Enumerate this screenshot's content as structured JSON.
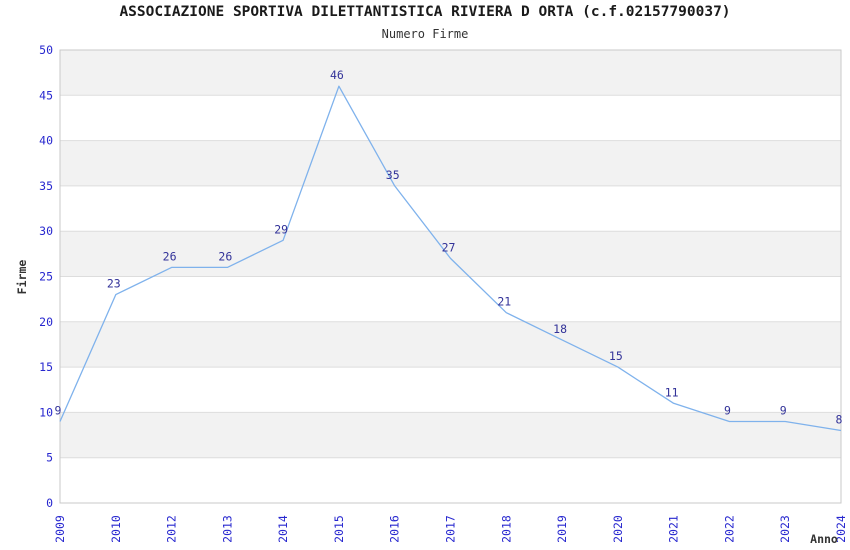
{
  "chart_data": {
    "type": "line",
    "title": "ASSOCIAZIONE SPORTIVA DILETTANTISTICA RIVIERA D ORTA (c.f.02157790037)",
    "subtitle": "Numero Firme",
    "xlabel": "Anno",
    "ylabel": "Firme",
    "categories": [
      "2009",
      "2010",
      "2012",
      "2013",
      "2014",
      "2015",
      "2016",
      "2017",
      "2018",
      "2019",
      "2020",
      "2021",
      "2022",
      "2023",
      "2024"
    ],
    "values": [
      9,
      23,
      26,
      26,
      29,
      46,
      35,
      27,
      21,
      18,
      15,
      11,
      9,
      9,
      8
    ],
    "ylim": [
      0,
      50
    ],
    "ytick_step": 5,
    "yticks": [
      0,
      5,
      10,
      15,
      20,
      25,
      30,
      35,
      40,
      45,
      50
    ],
    "grid": true,
    "banded_background": true,
    "legend_position": "none",
    "data_labels_shown": true,
    "x_tick_rotation_deg": 90,
    "colors": {
      "line": "#7fb2ec",
      "tick_labels": "#2727cf",
      "data_labels": "#333399",
      "band_fill": "#f2f2f2",
      "gridline": "#dddddd",
      "plot_border": "#c9c9c9",
      "title_text": "#1a1a1a",
      "axis_title_text": "#333333"
    }
  }
}
